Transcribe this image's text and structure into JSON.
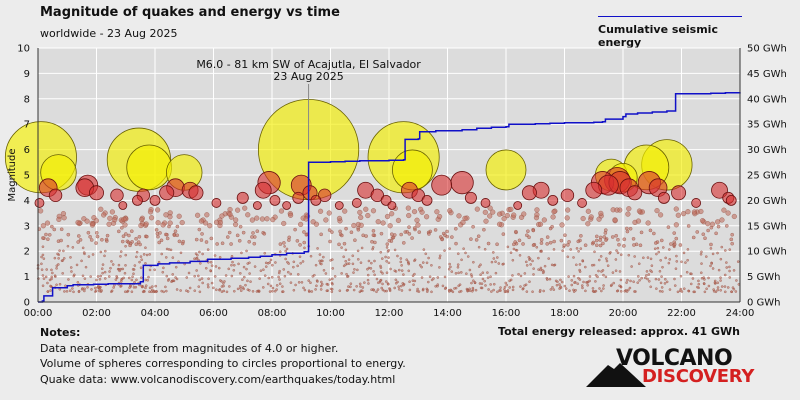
{
  "page": {
    "title": "Magnitude of quakes and energy vs time",
    "subtitle": "worldwide - 23 Aug 2025",
    "legend_label": "Cumulative seismic energy",
    "notes_title": "Notes:",
    "notes": [
      "Data near-complete from magnitudes of 4.0 or higher.",
      "Volume of spheres corresponding to circles proportional to energy.",
      "Quake data: www.volcanodiscovery.com/earthquakes/today.html"
    ],
    "total_energy": "Total energy released: approx. 41 GWh",
    "logo_line1": "VOLCANO",
    "logo_line2": "DISCOVERY",
    "logo_icon": "volcano-icon"
  },
  "chart_data": {
    "type": "scatter",
    "ylabel": "Magnitude",
    "xlim": [
      0,
      24
    ],
    "ylim": [
      0,
      10
    ],
    "y2lim": [
      0,
      50
    ],
    "x_ticks": [
      "00:00",
      "02:00",
      "04:00",
      "06:00",
      "08:00",
      "10:00",
      "12:00",
      "14:00",
      "16:00",
      "18:00",
      "20:00",
      "22:00",
      "24:00"
    ],
    "y_ticks": [
      "0",
      "1",
      "2",
      "3",
      "4",
      "5",
      "6",
      "7",
      "8",
      "9",
      "10"
    ],
    "y2_ticks": [
      "0 GWh",
      "5 GWh",
      "10 GWh",
      "15 GWh",
      "20 GWh",
      "25 GWh",
      "30 GWh",
      "35 GWh",
      "40 GWh",
      "45 GWh",
      "50 GWh"
    ],
    "grid": true,
    "annotation": {
      "text": [
        "M6.0 - 81 km SW of Acajutla, El Salvador",
        "23 Aug 2025"
      ],
      "x": 9.25,
      "y": 6.0
    },
    "colors": {
      "energy_line": "#1010c8",
      "large_quake": "#f4f000",
      "medium_quake": "#d83030",
      "small_quake": "#c07060",
      "grid": "#ffffff",
      "background": "#dcdcdc"
    },
    "series": [
      {
        "name": "Cumulative seismic energy",
        "x": [
          0,
          0.15,
          0.2,
          0.5,
          1.0,
          1.2,
          1.9,
          2.4,
          3.5,
          3.6,
          4.1,
          4.5,
          5.2,
          5.8,
          6.6,
          7.2,
          7.6,
          8.0,
          8.5,
          9.1,
          9.24,
          9.25,
          10.0,
          10.5,
          11.0,
          11.5,
          12.0,
          12.5,
          12.55,
          13.0,
          13.05,
          13.6,
          14.5,
          15.0,
          15.5,
          16.0,
          16.1,
          17.0,
          17.5,
          18.0,
          19.0,
          19.3,
          19.4,
          20.0,
          20.1,
          20.5,
          21.0,
          21.5,
          21.8,
          23.0,
          23.5,
          24.0
        ],
        "y": [
          0,
          0.2,
          1.2,
          2.8,
          3.2,
          3.4,
          3.5,
          3.6,
          4.0,
          7.2,
          7.5,
          7.7,
          8.0,
          8.4,
          8.6,
          8.8,
          9.0,
          9.3,
          9.6,
          9.9,
          10.0,
          27.5,
          27.6,
          27.7,
          27.8,
          27.8,
          27.9,
          28.0,
          32.0,
          32.1,
          33.5,
          33.7,
          33.9,
          34.2,
          34.4,
          34.5,
          35.0,
          35.1,
          35.2,
          35.3,
          35.4,
          35.5,
          36.0,
          36.5,
          37.0,
          37.2,
          37.4,
          37.6,
          41.0,
          41.1,
          41.2,
          41.3
        ]
      },
      {
        "name": "",
        "points": [
          {
            "x": 0.1,
            "m": 5.7
          },
          {
            "x": 0.7,
            "m": 5.1
          },
          {
            "x": 0.35,
            "m": 4.5
          },
          {
            "x": 0.05,
            "m": 3.9
          },
          {
            "x": 0.6,
            "m": 4.2
          },
          {
            "x": 1.6,
            "m": 4.5
          },
          {
            "x": 1.7,
            "m": 4.6
          },
          {
            "x": 2.0,
            "m": 4.3
          },
          {
            "x": 2.7,
            "m": 4.2
          },
          {
            "x": 2.9,
            "m": 3.8
          },
          {
            "x": 3.4,
            "m": 4.0
          },
          {
            "x": 3.45,
            "m": 5.6
          },
          {
            "x": 3.6,
            "m": 4.2
          },
          {
            "x": 3.8,
            "m": 5.3
          },
          {
            "x": 4.0,
            "m": 4.0
          },
          {
            "x": 4.4,
            "m": 4.3
          },
          {
            "x": 4.7,
            "m": 4.5
          },
          {
            "x": 5.0,
            "m": 5.1
          },
          {
            "x": 5.2,
            "m": 4.4
          },
          {
            "x": 5.4,
            "m": 4.3
          },
          {
            "x": 6.1,
            "m": 3.9
          },
          {
            "x": 7.0,
            "m": 4.1
          },
          {
            "x": 7.5,
            "m": 3.8
          },
          {
            "x": 7.7,
            "m": 4.4
          },
          {
            "x": 7.9,
            "m": 4.7
          },
          {
            "x": 8.1,
            "m": 4.0
          },
          {
            "x": 8.5,
            "m": 3.8
          },
          {
            "x": 8.9,
            "m": 4.1
          },
          {
            "x": 9.0,
            "m": 4.6
          },
          {
            "x": 9.25,
            "m": 6.0
          },
          {
            "x": 9.3,
            "m": 4.3
          },
          {
            "x": 9.5,
            "m": 4.0
          },
          {
            "x": 9.8,
            "m": 4.2
          },
          {
            "x": 10.3,
            "m": 3.8
          },
          {
            "x": 10.9,
            "m": 3.9
          },
          {
            "x": 11.2,
            "m": 4.4
          },
          {
            "x": 11.6,
            "m": 4.2
          },
          {
            "x": 11.9,
            "m": 4.0
          },
          {
            "x": 12.1,
            "m": 3.8
          },
          {
            "x": 12.5,
            "m": 5.7
          },
          {
            "x": 12.7,
            "m": 4.4
          },
          {
            "x": 12.8,
            "m": 5.2
          },
          {
            "x": 13.0,
            "m": 4.2
          },
          {
            "x": 13.3,
            "m": 4.0
          },
          {
            "x": 13.8,
            "m": 4.6
          },
          {
            "x": 14.5,
            "m": 4.7
          },
          {
            "x": 14.8,
            "m": 4.1
          },
          {
            "x": 15.3,
            "m": 3.9
          },
          {
            "x": 16.0,
            "m": 5.2
          },
          {
            "x": 16.4,
            "m": 3.8
          },
          {
            "x": 16.8,
            "m": 4.3
          },
          {
            "x": 17.2,
            "m": 4.4
          },
          {
            "x": 17.6,
            "m": 4.0
          },
          {
            "x": 18.1,
            "m": 4.2
          },
          {
            "x": 18.6,
            "m": 3.9
          },
          {
            "x": 19.0,
            "m": 4.4
          },
          {
            "x": 19.3,
            "m": 4.7
          },
          {
            "x": 19.5,
            "m": 4.6
          },
          {
            "x": 19.6,
            "m": 5.0
          },
          {
            "x": 19.8,
            "m": 4.8
          },
          {
            "x": 19.9,
            "m": 4.7
          },
          {
            "x": 20.0,
            "m": 4.9
          },
          {
            "x": 20.2,
            "m": 4.5
          },
          {
            "x": 20.4,
            "m": 4.3
          },
          {
            "x": 20.8,
            "m": 5.3
          },
          {
            "x": 20.9,
            "m": 4.7
          },
          {
            "x": 21.2,
            "m": 4.5
          },
          {
            "x": 21.4,
            "m": 4.1
          },
          {
            "x": 21.5,
            "m": 5.4
          },
          {
            "x": 21.9,
            "m": 4.3
          },
          {
            "x": 22.5,
            "m": 3.9
          },
          {
            "x": 23.3,
            "m": 4.4
          },
          {
            "x": 23.6,
            "m": 4.1
          },
          {
            "x": 23.7,
            "m": 4.0
          }
        ]
      }
    ]
  }
}
